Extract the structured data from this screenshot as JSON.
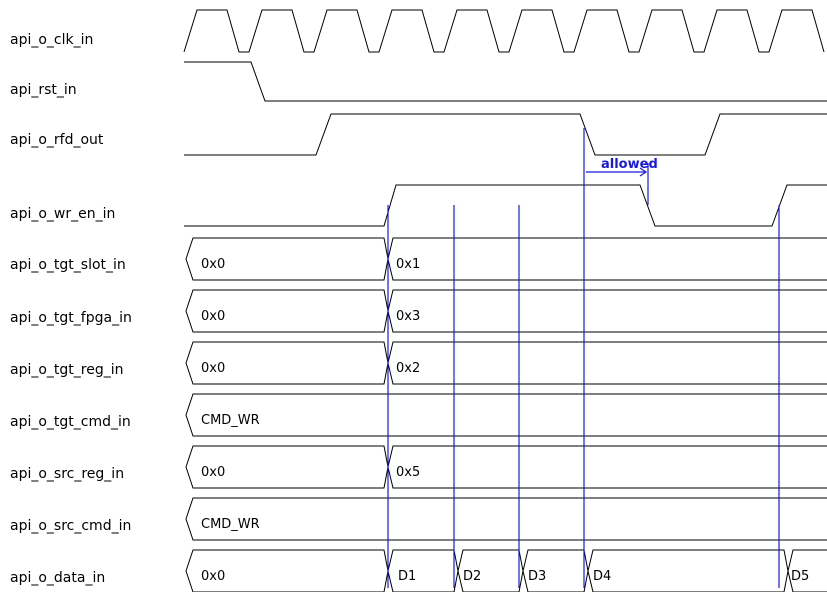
{
  "signals": [
    {
      "name": "api_o_clk_in"
    },
    {
      "name": "api_rst_in"
    },
    {
      "name": "api_o_rfd_out"
    },
    {
      "name": "api_o_wr_en_in"
    },
    {
      "name": "api_o_tgt_slot_in",
      "values": [
        "0x0",
        "0x1"
      ]
    },
    {
      "name": "api_o_tgt_fpga_in",
      "values": [
        "0x0",
        "0x3"
      ]
    },
    {
      "name": "api_o_tgt_reg_in",
      "values": [
        "0x0",
        "0x2"
      ]
    },
    {
      "name": "api_o_tgt_cmd_in",
      "values": [
        "CMD_WR"
      ]
    },
    {
      "name": "api_o_src_reg_in",
      "values": [
        "0x0",
        "0x5"
      ]
    },
    {
      "name": "api_o_src_cmd_in",
      "values": [
        "CMD_WR"
      ]
    },
    {
      "name": "api_o_data_in",
      "values": [
        "0x0",
        "D1",
        "D2",
        "D3",
        "D4",
        "D5"
      ]
    }
  ],
  "annotation": {
    "label": "allowed"
  },
  "colors": {
    "wave": "#000000",
    "marker": "#1a1ad6",
    "background": "#ffffff"
  }
}
